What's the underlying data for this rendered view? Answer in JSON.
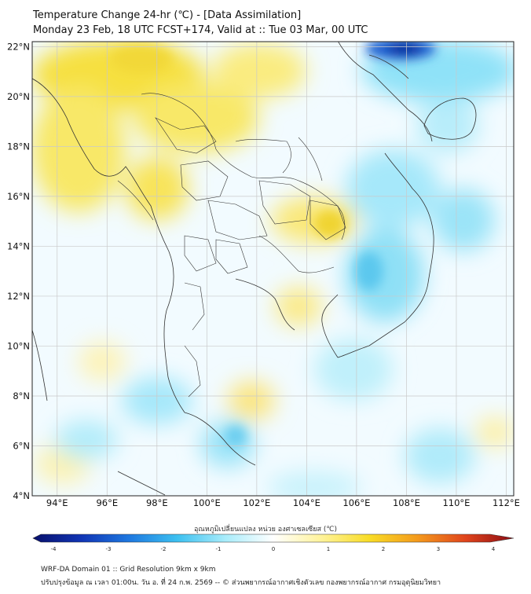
{
  "header": {
    "title": "Temperature Change 24-hr (℃) - [Data Assimilation]",
    "subtitle": "Monday 23 Feb, 18 UTC FCST+174, Valid at :: Tue 03 Mar, 00 UTC"
  },
  "map": {
    "lat_labels": [
      "22°N",
      "20°N",
      "18°N",
      "16°N",
      "14°N",
      "12°N",
      "10°N",
      "8°N",
      "6°N",
      "4°N"
    ],
    "lon_labels": [
      "94°E",
      "96°E",
      "98°E",
      "100°E",
      "102°E",
      "104°E",
      "106°E",
      "108°E",
      "110°E",
      "112°E"
    ],
    "lat_range": [
      4,
      22.2
    ],
    "lon_range": [
      93,
      112.3
    ]
  },
  "colorbar": {
    "title": "อุณหภูมิเปลี่ยนแปลง หน่วย องศาเซลเซียส (℃)",
    "ticks": [
      "-4",
      "-3",
      "-2",
      "-1",
      "0",
      "1",
      "2",
      "3",
      "4"
    ],
    "min": -4,
    "max": 4,
    "colors": [
      "#08106b",
      "#1034b4",
      "#1e78e0",
      "#3cc0f0",
      "#a8ecfa",
      "#ffffff",
      "#fff39a",
      "#f8dc26",
      "#f49a1c",
      "#e0441c",
      "#8c0c14"
    ]
  },
  "footer": {
    "line1": "WRF-DA Domain 01 :: Grid Resolution 9km x 9km",
    "line2": "ปรับปรุงข้อมูล ณ เวลา 01:00น. วัน อ. ที่ 24 ก.พ. 2569 -- © ส่วนพยากรณ์อากาศเชิงตัวเลข กองพยากรณ์อากาศ กรมอุตุนิยมวิทยา"
  }
}
